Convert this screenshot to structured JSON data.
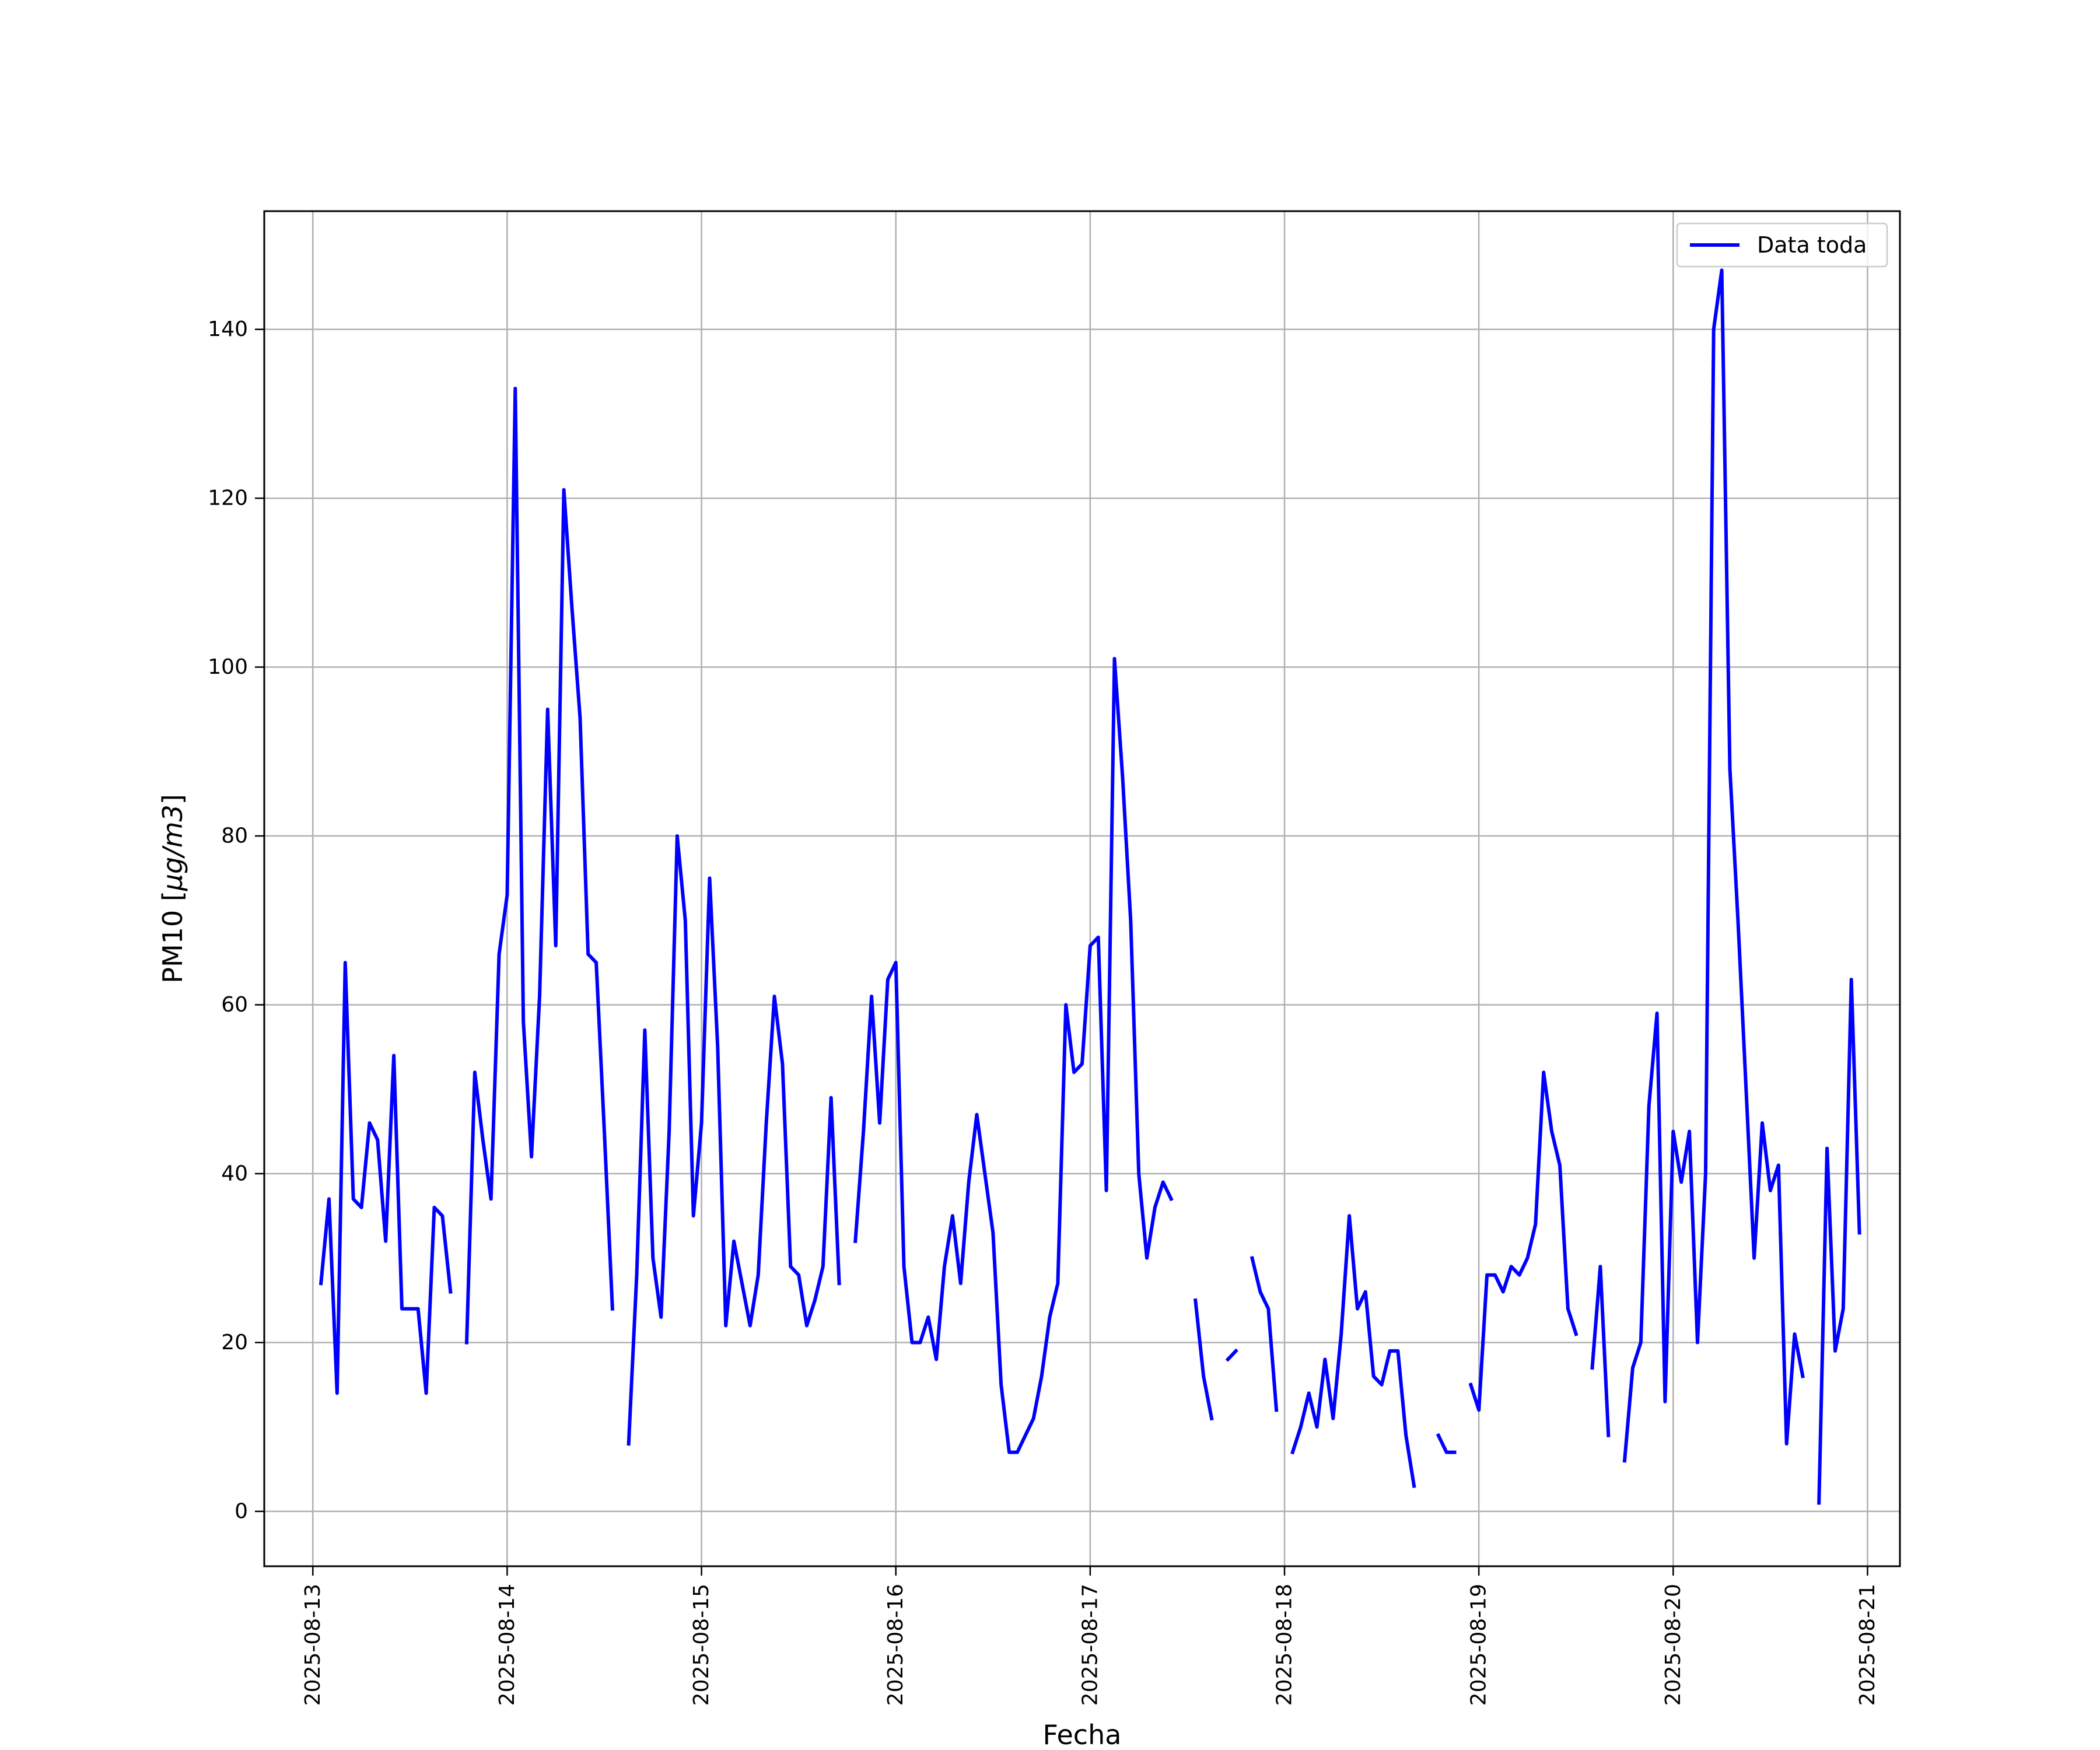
{
  "chart_data": {
    "type": "line",
    "xlabel": "Fecha",
    "ylabel": "PM10 [μg/m3]",
    "ylabel_parts": [
      "PM10 [",
      "μg/m3",
      "]"
    ],
    "x_range": [
      "2025-08-12T18:00",
      "2025-08-21T04:00"
    ],
    "ylim": [
      -6.5,
      154
    ],
    "x_ticks": [
      "2025-08-13",
      "2025-08-14",
      "2025-08-15",
      "2025-08-16",
      "2025-08-17",
      "2025-08-18",
      "2025-08-19",
      "2025-08-20",
      "2025-08-21"
    ],
    "y_ticks": [
      0,
      20,
      40,
      60,
      80,
      100,
      120,
      140
    ],
    "grid": true,
    "legend_position": "top-right",
    "series": [
      {
        "name": "Data toda",
        "color": "#0000ff",
        "x_start": "2025-08-13T01:00",
        "interval": "1h",
        "values": [
          27,
          37,
          14,
          65,
          37,
          36,
          46,
          44,
          32,
          54,
          24,
          24,
          24,
          14,
          36,
          35,
          26,
          null,
          20,
          52,
          44,
          37,
          66,
          73,
          133,
          58,
          42,
          61,
          95,
          67,
          121,
          107,
          94,
          66,
          65,
          45,
          24,
          null,
          8,
          28,
          57,
          30,
          23,
          45,
          80,
          70,
          35,
          46,
          75,
          55,
          22,
          32,
          27,
          22,
          28,
          46,
          61,
          53,
          29,
          28,
          22,
          25,
          29,
          49,
          27,
          null,
          32,
          45,
          61,
          46,
          63,
          65,
          29,
          20,
          20,
          23,
          18,
          29,
          35,
          27,
          39,
          47,
          40,
          33,
          15,
          7,
          7,
          9,
          11,
          16,
          23,
          27,
          60,
          52,
          53,
          67,
          68,
          38,
          101,
          87,
          70,
          40,
          30,
          36,
          39,
          37,
          null,
          null,
          25,
          16,
          11,
          null,
          18,
          19,
          null,
          30,
          26,
          24,
          12,
          null,
          7,
          10,
          14,
          10,
          18,
          11,
          21,
          35,
          24,
          26,
          16,
          15,
          19,
          19,
          9,
          3,
          null,
          null,
          9,
          7,
          7,
          null,
          15,
          12,
          28,
          28,
          26,
          29,
          28,
          30,
          34,
          52,
          45,
          41,
          24,
          21,
          null,
          17,
          29,
          9,
          null,
          6,
          17,
          20,
          48,
          59,
          13,
          45,
          39,
          45,
          20,
          40,
          140,
          147,
          88,
          70,
          50,
          30,
          46,
          38,
          41,
          8,
          21,
          16,
          null,
          1,
          43,
          19,
          24,
          63,
          33
        ]
      }
    ]
  }
}
